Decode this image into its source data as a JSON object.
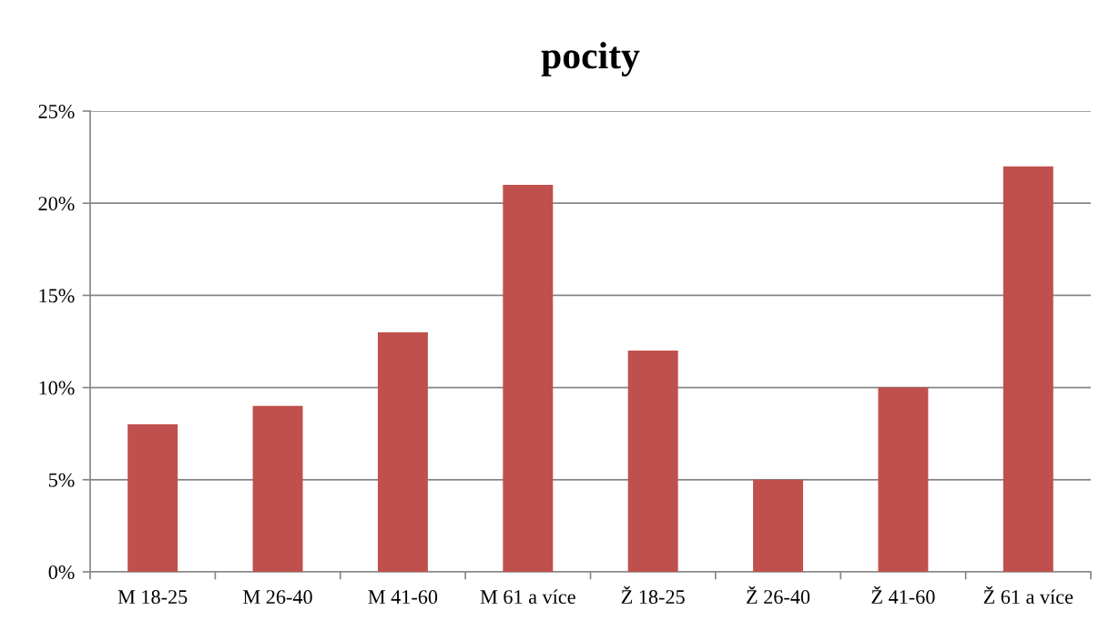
{
  "chart_data": {
    "type": "bar",
    "title": "pocity",
    "categories": [
      "M 18-25",
      "M 26-40",
      "M 41-60",
      "M 61 a více",
      "Ž 18-25",
      "Ž 26-40",
      "Ž 41-60",
      "Ž 61 a více"
    ],
    "values": [
      8,
      9,
      13,
      21,
      12,
      5,
      10,
      22
    ],
    "color": "#c0504d",
    "ylim": [
      0,
      25
    ],
    "yticks": [
      {
        "value": 0,
        "label": "0%"
      },
      {
        "value": 5,
        "label": "5%"
      },
      {
        "value": 10,
        "label": "10%"
      },
      {
        "value": 15,
        "label": "15%"
      },
      {
        "value": 20,
        "label": "20%"
      },
      {
        "value": 25,
        "label": "25%"
      }
    ],
    "grid": "y"
  }
}
